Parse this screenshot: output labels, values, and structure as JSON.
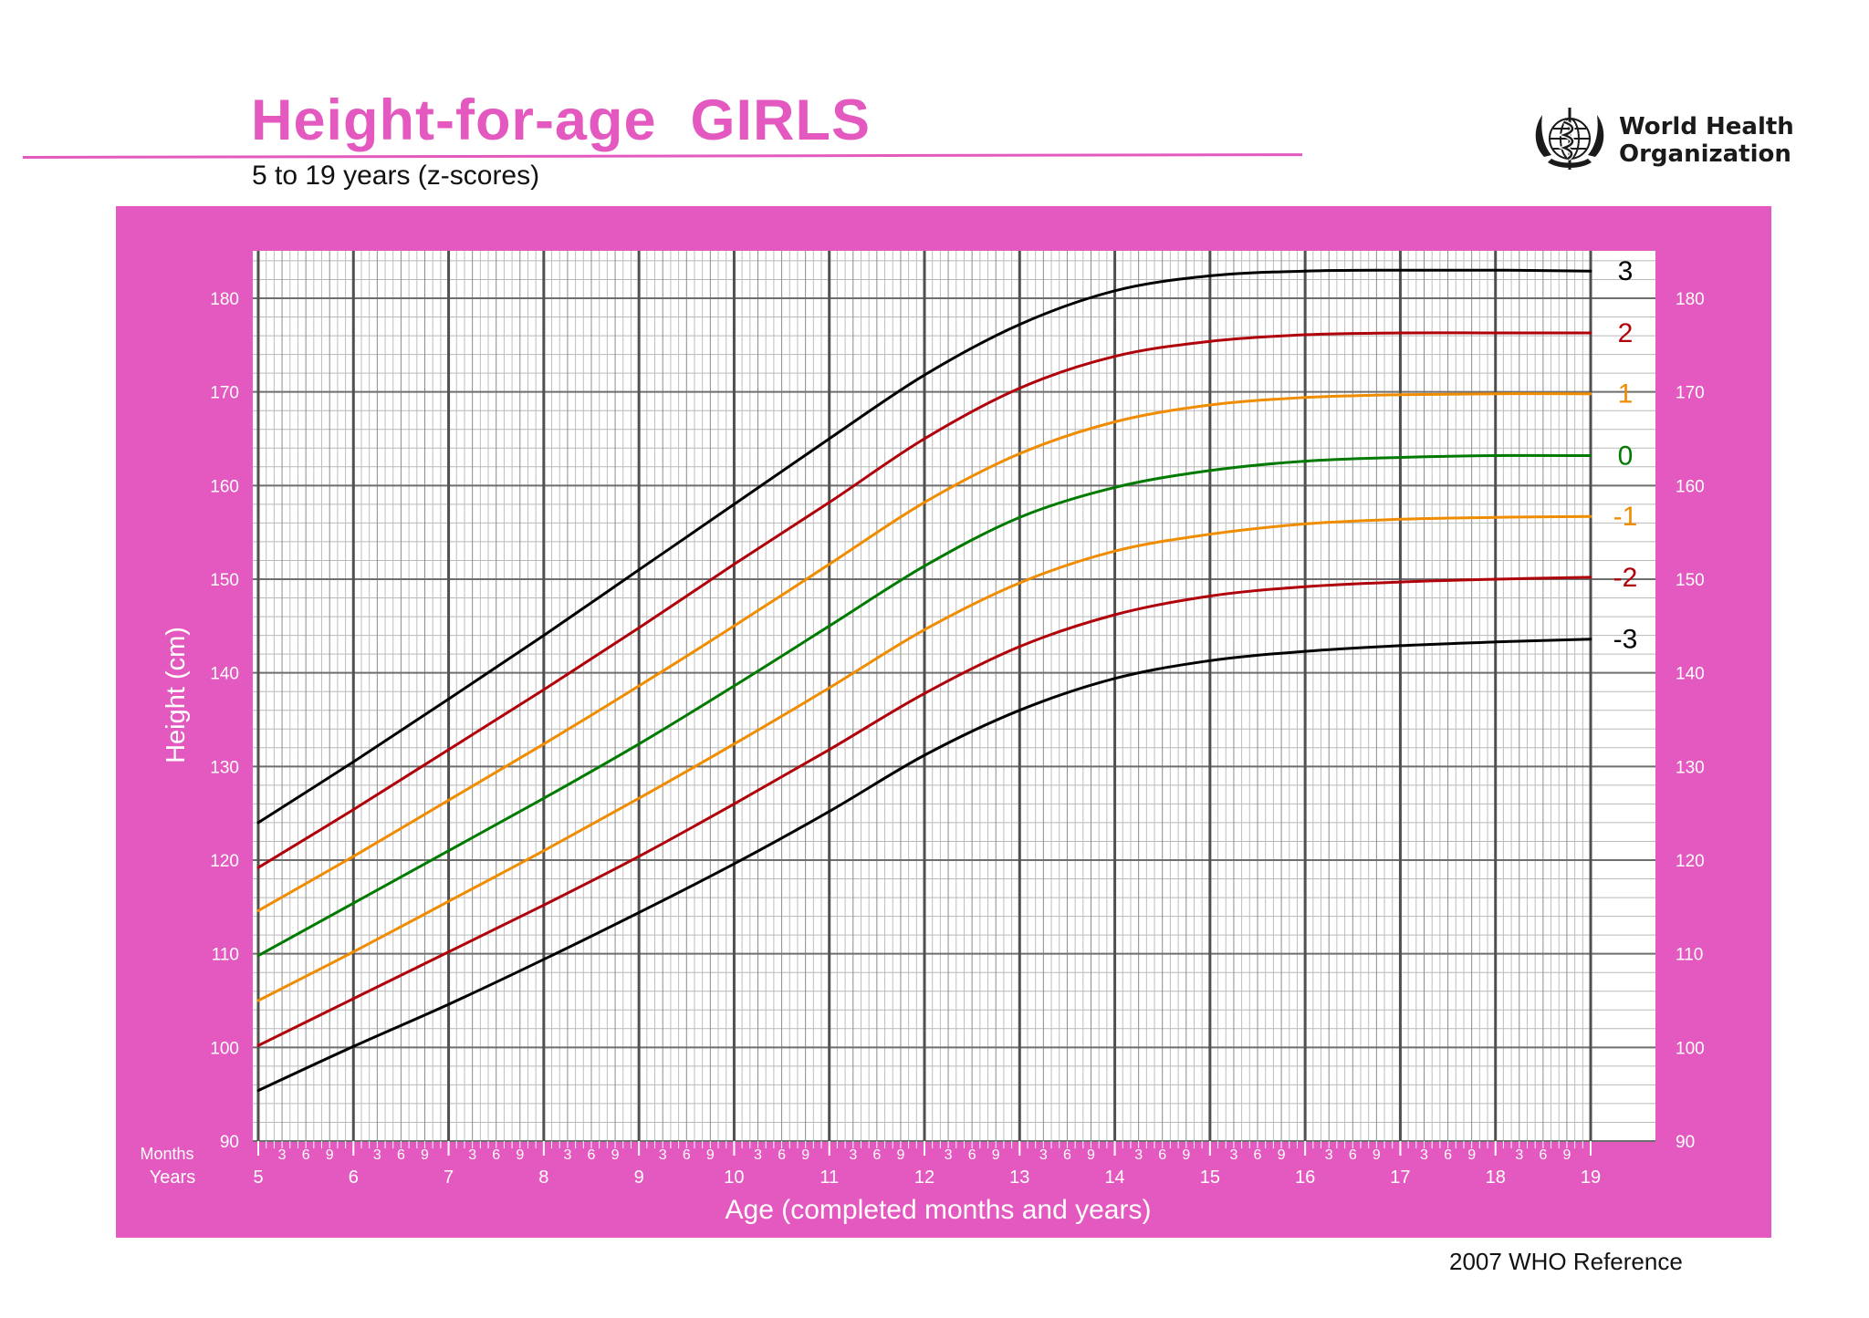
{
  "header": {
    "title": "Height-for-age  GIRLS",
    "subtitle": "5 to 19 years (z-scores)",
    "org_line1": "World Health",
    "org_line2": "Organization",
    "logo_icon": "who-emblem-icon"
  },
  "footer": {
    "reference": "2007 WHO Reference"
  },
  "colors": {
    "panel": "#e459bf",
    "title": "#e459bf",
    "z3": "#000000",
    "z2": "#b0000a",
    "z1": "#f08c00",
    "z0": "#007a00"
  },
  "chart_data": {
    "type": "line",
    "title": "Height-for-age  GIRLS",
    "subtitle": "5 to 19 years (z-scores)",
    "xlabel": "Age (completed months and years)",
    "ylabel": "Height (cm)",
    "row_label_months": "Months",
    "row_label_years": "Years",
    "xlim": [
      5,
      19
    ],
    "ylim": [
      90,
      185
    ],
    "x_major_ticks": [
      5,
      6,
      7,
      8,
      9,
      10,
      11,
      12,
      13,
      14,
      15,
      16,
      17,
      18,
      19
    ],
    "x_minor_tick_labels": [
      "3",
      "6",
      "9"
    ],
    "y_ticks": [
      90,
      100,
      110,
      120,
      130,
      140,
      150,
      160,
      170,
      180
    ],
    "grid": true,
    "x": [
      5,
      6,
      7,
      8,
      9,
      10,
      11,
      12,
      13,
      14,
      15,
      16,
      17,
      18,
      19
    ],
    "series": [
      {
        "name": "3",
        "color": "#000000",
        "values": [
          124,
          130.5,
          137.2,
          144,
          151,
          158,
          165,
          171.8,
          177.2,
          180.8,
          182.4,
          182.9,
          183,
          183,
          182.9
        ]
      },
      {
        "name": "2",
        "color": "#b0000a",
        "values": [
          119.2,
          125.4,
          131.8,
          138.2,
          144.8,
          151.6,
          158.2,
          165,
          170.4,
          173.8,
          175.4,
          176.1,
          176.3,
          176.3,
          176.3
        ]
      },
      {
        "name": "1",
        "color": "#f08c00",
        "values": [
          114.6,
          120.4,
          126.4,
          132.4,
          138.6,
          145,
          151.6,
          158.2,
          163.4,
          166.8,
          168.6,
          169.4,
          169.7,
          169.8,
          169.8
        ]
      },
      {
        "name": "0",
        "color": "#007a00",
        "values": [
          109.8,
          115.4,
          121,
          126.6,
          132.4,
          138.6,
          145,
          151.4,
          156.6,
          159.8,
          161.6,
          162.6,
          163,
          163.2,
          163.2
        ]
      },
      {
        "name": "-1",
        "color": "#f08c00",
        "values": [
          105,
          110.2,
          115.6,
          121,
          126.6,
          132.4,
          138.4,
          144.6,
          149.6,
          153,
          154.8,
          155.9,
          156.4,
          156.6,
          156.7
        ]
      },
      {
        "name": "-2",
        "color": "#b0000a",
        "values": [
          100.2,
          105.2,
          110.2,
          115.2,
          120.4,
          126,
          131.8,
          137.8,
          142.8,
          146.2,
          148.2,
          149.2,
          149.7,
          150,
          150.2
        ]
      },
      {
        "name": "-3",
        "color": "#000000",
        "values": [
          95.4,
          100.1,
          104.6,
          109.4,
          114.4,
          119.6,
          125.2,
          131.2,
          136,
          139.4,
          141.3,
          142.3,
          142.9,
          143.3,
          143.6
        ]
      }
    ]
  }
}
